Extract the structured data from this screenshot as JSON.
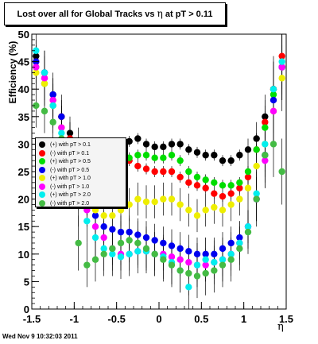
{
  "footer": {
    "timestamp": "Wed Nov  9 10:32:03 2011"
  },
  "chart_data": {
    "type": "scatter",
    "title_parts": {
      "prefix": "Lost over all for Global Tracks vs",
      "symbol": "η",
      "suffix": "at pT > 0.11"
    },
    "xlabel": "η",
    "ylabel": "Efficiency (%)",
    "xlim": [
      -1.5,
      1.5
    ],
    "ylim": [
      0,
      50
    ],
    "xticks": [
      -1.5,
      -1,
      -0.5,
      0,
      0.5,
      1,
      1.5
    ],
    "xtick_labels": [
      "-1.5",
      "-1",
      "-0.5",
      "0",
      "0.5",
      "1",
      "1.5"
    ],
    "yticks": [
      0,
      5,
      10,
      15,
      20,
      25,
      30,
      35,
      40,
      45,
      50
    ],
    "ytick_labels": [
      "0",
      "5",
      "10",
      "15",
      "20",
      "25",
      "30",
      "35",
      "40",
      "45",
      "50"
    ],
    "grid": false,
    "legend_position": "left",
    "series": [
      {
        "name": "(+) with pT > 0.1",
        "color": "#000000",
        "x": [
          -1.45,
          -1.35,
          -1.25,
          -1.15,
          -1.05,
          -0.95,
          -0.85,
          -0.75,
          -0.65,
          -0.55,
          -0.45,
          -0.35,
          -0.25,
          -0.15,
          -0.05,
          0.05,
          0.15,
          0.25,
          0.35,
          0.45,
          0.55,
          0.65,
          0.75,
          0.85,
          0.95,
          1.05,
          1.15,
          1.25,
          1.35,
          1.45
        ],
        "y": [
          46,
          43,
          39,
          35,
          32,
          30,
          28.5,
          28.5,
          29,
          29.5,
          30,
          30.5,
          31,
          30,
          29.5,
          29.5,
          30,
          30,
          29,
          28.5,
          28,
          28,
          27,
          27,
          28,
          29,
          31,
          35,
          40,
          44
        ],
        "err": [
          3,
          3,
          3,
          3,
          3,
          3,
          1,
          1,
          1,
          1,
          1,
          1,
          1,
          1,
          1,
          1,
          1,
          1,
          1,
          1,
          1,
          1,
          1,
          1,
          1,
          2,
          3,
          4,
          5,
          6
        ]
      },
      {
        "name": "(-) with pT > 0.1",
        "color": "#ff0000",
        "x": [
          -1.45,
          -1.35,
          -1.25,
          -1.15,
          -1.05,
          -0.95,
          -0.85,
          -0.75,
          -0.65,
          -0.55,
          -0.45,
          -0.35,
          -0.25,
          -0.15,
          -0.05,
          0.05,
          0.15,
          0.25,
          0.35,
          0.45,
          0.55,
          0.65,
          0.75,
          0.85,
          0.95,
          1.05,
          1.15,
          1.25,
          1.35,
          1.45
        ],
        "y": [
          45,
          42,
          38,
          35,
          31,
          28,
          25.5,
          25.5,
          26,
          26.5,
          27.5,
          27,
          26,
          25.5,
          25,
          25,
          25,
          24,
          23,
          22.5,
          22,
          21,
          20.5,
          21,
          22,
          24,
          29,
          34,
          40,
          46
        ],
        "err": [
          3,
          3,
          3,
          3,
          3,
          3,
          1,
          1,
          1,
          1,
          1,
          1,
          1,
          1,
          1,
          1,
          1,
          1,
          1,
          1,
          1,
          1,
          1,
          1,
          1,
          2,
          3,
          4,
          5,
          6
        ]
      },
      {
        "name": "(+) with pT > 0.5",
        "color": "#00dd00",
        "x": [
          -1.45,
          -1.35,
          -1.25,
          -1.15,
          -1.05,
          -0.95,
          -0.85,
          -0.75,
          -0.65,
          -0.55,
          -0.45,
          -0.35,
          -0.25,
          -0.15,
          -0.05,
          0.05,
          0.15,
          0.25,
          0.35,
          0.45,
          0.55,
          0.65,
          0.75,
          0.85,
          0.95,
          1.05,
          1.15,
          1.25,
          1.35,
          1.45
        ],
        "y": [
          44,
          41,
          37,
          33,
          30,
          27,
          27,
          28,
          28.5,
          28,
          27.5,
          27.5,
          28,
          28,
          27.5,
          27.5,
          28,
          27,
          25,
          24,
          23.5,
          23,
          22.5,
          22.5,
          23,
          25,
          29,
          33,
          39,
          44
        ],
        "err": [
          3,
          3,
          3,
          3,
          3,
          3,
          1,
          1,
          1,
          1,
          1,
          1,
          1,
          1,
          1,
          1,
          1,
          1,
          1,
          1,
          1,
          1,
          1,
          1,
          1,
          2,
          3,
          4,
          5,
          6
        ]
      },
      {
        "name": "(-) with pT > 0.5",
        "color": "#0000ee",
        "x": [
          -1.45,
          -1.35,
          -1.25,
          -1.15,
          -1.05,
          -0.95,
          -0.85,
          -0.75,
          -0.65,
          -0.55,
          -0.45,
          -0.35,
          -0.25,
          -0.15,
          -0.05,
          0.05,
          0.15,
          0.25,
          0.35,
          0.45,
          0.55,
          0.65,
          0.75,
          0.85,
          0.95,
          1.05,
          1.15,
          1.25,
          1.35,
          1.45
        ],
        "y": [
          45,
          43,
          39,
          35,
          30,
          25,
          20,
          17,
          15,
          14.5,
          14,
          14,
          13.5,
          13,
          12.5,
          12,
          11.5,
          11,
          10.5,
          10,
          10,
          10,
          11,
          12,
          13,
          15,
          20,
          28,
          38,
          44
        ],
        "err": [
          3,
          4,
          4,
          4,
          4,
          4,
          3,
          3,
          3,
          3,
          3,
          3,
          3,
          3,
          3,
          3,
          3,
          3,
          3,
          3,
          3,
          3,
          3,
          3,
          3,
          3,
          4,
          5,
          6,
          6
        ]
      },
      {
        "name": "(+) with pT > 1.0",
        "color": "#eeee00",
        "x": [
          -1.45,
          -1.35,
          -1.25,
          -1.15,
          -1.05,
          -0.95,
          -0.85,
          -0.75,
          -0.65,
          -0.55,
          -0.45,
          -0.35,
          -0.25,
          -0.15,
          -0.05,
          0.05,
          0.15,
          0.25,
          0.35,
          0.45,
          0.55,
          0.65,
          0.75,
          0.85,
          0.95,
          1.05,
          1.15,
          1.25,
          1.35,
          1.45
        ],
        "y": [
          43,
          41,
          37,
          33,
          28,
          24,
          20,
          18,
          17,
          17,
          18,
          19,
          20,
          19.5,
          19.5,
          20,
          20,
          19,
          18,
          17,
          18,
          18.5,
          18,
          19,
          20,
          22,
          26,
          30,
          36,
          42
        ],
        "err": [
          3,
          4,
          4,
          4,
          4,
          4,
          3,
          3,
          3,
          3,
          3,
          3,
          3,
          3,
          3,
          3,
          3,
          3,
          3,
          3,
          3,
          3,
          3,
          3,
          3,
          3,
          4,
          5,
          6,
          6
        ]
      },
      {
        "name": "(-) with pT > 1.0",
        "color": "#ff00ff",
        "x": [
          -1.45,
          -1.35,
          -1.25,
          -1.15,
          -1.05,
          -0.95,
          -0.85,
          -0.75,
          -0.65,
          -0.55,
          -0.45,
          -0.35,
          -0.25,
          -0.15,
          -0.05,
          0.05,
          0.15,
          0.25,
          0.35,
          0.45,
          0.55,
          0.65,
          0.75,
          0.85,
          0.95,
          1.05,
          1.15,
          1.25,
          1.35,
          1.45
        ],
        "y": [
          44,
          42,
          38,
          33,
          27,
          22,
          18,
          15,
          13,
          11,
          10,
          10,
          10.5,
          10.5,
          10,
          10,
          9.5,
          9,
          8.5,
          8,
          8,
          8.5,
          9,
          10,
          12,
          15,
          20,
          27,
          36,
          44
        ],
        "err": [
          3,
          4,
          4,
          4,
          4,
          4,
          3,
          3,
          3,
          3,
          3,
          3,
          3,
          3,
          3,
          3,
          3,
          3,
          3,
          3,
          3,
          3,
          3,
          3,
          3,
          3,
          4,
          5,
          6,
          6
        ]
      },
      {
        "name": "(+) with pT > 2.0",
        "color": "#00eeee",
        "x": [
          -1.45,
          -1.35,
          -1.25,
          -1.15,
          -1.05,
          -0.95,
          -0.85,
          -0.75,
          -0.65,
          -0.55,
          -0.45,
          -0.35,
          -0.25,
          -0.15,
          -0.05,
          0.05,
          0.15,
          0.25,
          0.35,
          0.45,
          0.55,
          0.65,
          0.75,
          0.85,
          0.95,
          1.05,
          1.15,
          1.25,
          1.35,
          1.45
        ],
        "y": [
          47,
          43,
          37,
          32,
          26,
          20,
          16,
          13,
          11,
          10,
          9.5,
          10,
          10.5,
          10.5,
          10,
          9.5,
          8.5,
          7,
          4,
          8,
          9,
          8.5,
          9,
          10,
          12,
          15,
          21,
          30,
          40,
          45
        ],
        "err": [
          4,
          4,
          5,
          5,
          5,
          5,
          4,
          4,
          4,
          4,
          4,
          4,
          4,
          4,
          4,
          4,
          4,
          4,
          4,
          4,
          4,
          4,
          4,
          4,
          4,
          4,
          5,
          6,
          6,
          6
        ]
      },
      {
        "name": "(-) with pT > 2.0",
        "color": "#44bb44",
        "x": [
          -1.45,
          -1.35,
          -1.25,
          -1.15,
          -1.05,
          -0.95,
          -0.85,
          -0.75,
          -0.65,
          -0.55,
          -0.45,
          -0.35,
          -0.25,
          -0.15,
          -0.05,
          0.05,
          0.15,
          0.25,
          0.35,
          0.45,
          0.55,
          0.65,
          0.75,
          0.85,
          0.95,
          1.05,
          1.15,
          1.25,
          1.35,
          1.45
        ],
        "y": [
          37,
          36,
          34,
          31,
          26,
          12,
          8,
          9,
          10,
          11,
          12,
          12.5,
          12,
          11,
          10,
          9,
          8,
          7,
          6.5,
          6,
          6.5,
          7,
          8,
          9,
          11,
          14,
          20,
          28,
          30,
          25
        ],
        "err": [
          4,
          4,
          5,
          5,
          5,
          5,
          4,
          4,
          4,
          4,
          4,
          4,
          4,
          4,
          4,
          4,
          4,
          4,
          4,
          4,
          4,
          4,
          4,
          4,
          4,
          4,
          5,
          6,
          6,
          6
        ]
      }
    ]
  }
}
